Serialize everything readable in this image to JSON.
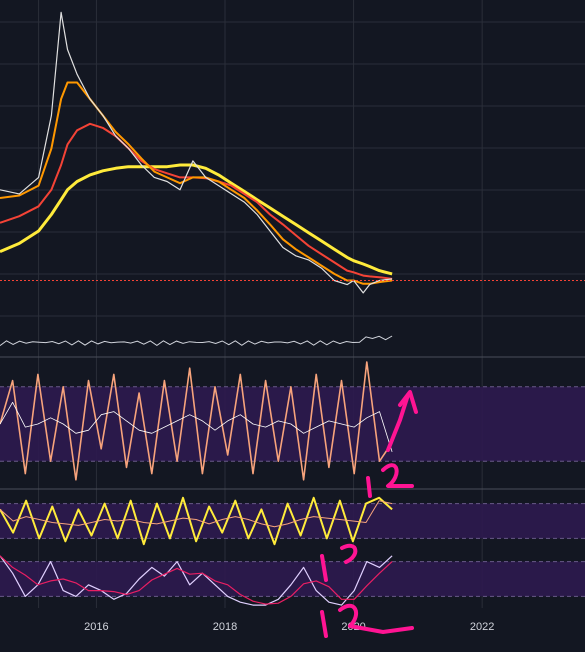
{
  "chart_data": {
    "type": "line",
    "x_range": [
      2014.5,
      2023.6
    ],
    "x_ticks": [
      "2016",
      "2018",
      "2020",
      "2022"
    ],
    "colors": {
      "background": "#131722",
      "grid": "#2a2e39",
      "price": "#e0e0e0",
      "ma_fast": "#ff9800",
      "ma_mid": "#f44336",
      "ma_slow": "#ffeb3b",
      "band": "#2e1a4f",
      "osc_main": "#f7a37c",
      "osc_signal": "#ffeb3b",
      "osc3_fast": "#e0d0ff",
      "osc3_slow": "#e91e63",
      "annotation": "#ff1493"
    },
    "price": {
      "x": [
        2014.5,
        2014.8,
        2015.1,
        2015.3,
        2015.45,
        2015.55,
        2015.7,
        2015.9,
        2016.1,
        2016.3,
        2016.5,
        2016.7,
        2016.9,
        2017.1,
        2017.3,
        2017.5,
        2017.7,
        2017.9,
        2018.1,
        2018.3,
        2018.5,
        2018.7,
        2018.9,
        2019.1,
        2019.3,
        2019.5,
        2019.7,
        2019.9,
        2020.0,
        2020.15,
        2020.25,
        2020.4,
        2020.6
      ],
      "values": [
        190,
        185,
        205,
        280,
        405,
        360,
        330,
        300,
        280,
        255,
        240,
        220,
        205,
        200,
        190,
        225,
        205,
        195,
        185,
        175,
        160,
        140,
        120,
        110,
        105,
        95,
        80,
        75,
        80,
        65,
        75,
        80,
        82
      ],
      "ma_fast": [
        180,
        183,
        195,
        240,
        300,
        320,
        320,
        300,
        280,
        260,
        245,
        228,
        212,
        205,
        198,
        205,
        205,
        200,
        190,
        180,
        165,
        148,
        130,
        118,
        108,
        98,
        88,
        80,
        80,
        76,
        76,
        78,
        80
      ],
      "ma_mid": [
        150,
        158,
        170,
        190,
        220,
        245,
        262,
        270,
        265,
        255,
        240,
        225,
        215,
        210,
        205,
        205,
        204,
        200,
        195,
        185,
        175,
        160,
        148,
        135,
        122,
        112,
        102,
        92,
        90,
        86,
        85,
        84,
        82
      ],
      "ma_slow": [
        115,
        125,
        140,
        160,
        178,
        190,
        200,
        208,
        213,
        216,
        218,
        218,
        218,
        218,
        220,
        220,
        216,
        208,
        198,
        188,
        178,
        168,
        158,
        148,
        138,
        128,
        118,
        108,
        104,
        100,
        97,
        92,
        88
      ],
      "reference_level": 80
    },
    "oscillators": [
      {
        "band": [
          20,
          80
        ],
        "values_main": [
          50,
          85,
          10,
          90,
          20,
          80,
          5,
          85,
          30,
          90,
          15,
          75,
          10,
          85,
          20,
          95,
          10,
          80,
          25,
          90,
          10,
          85,
          20,
          80,
          5,
          90,
          15,
          85,
          10,
          100,
          20,
          35
        ]
      },
      {
        "band": [
          20,
          80
        ],
        "values_main": [
          70,
          30,
          85,
          20,
          75,
          15,
          70,
          25,
          80,
          20,
          85,
          10,
          80,
          20,
          90,
          15,
          75,
          30,
          85,
          20,
          70,
          10,
          80,
          25,
          90,
          20,
          85,
          15,
          80,
          90,
          70
        ]
      },
      {
        "band": [
          20,
          80
        ],
        "values_main": [
          90,
          60,
          20,
          40,
          80,
          30,
          20,
          40,
          30,
          15,
          25,
          50,
          70,
          55,
          80,
          40,
          60,
          40,
          20,
          10,
          5,
          5,
          15,
          40,
          70,
          30,
          10,
          5,
          30,
          80,
          70,
          90
        ]
      }
    ]
  },
  "annotations": {
    "label_upper": "1 2",
    "label_mid": "1 2",
    "label_lower": "1 2"
  }
}
